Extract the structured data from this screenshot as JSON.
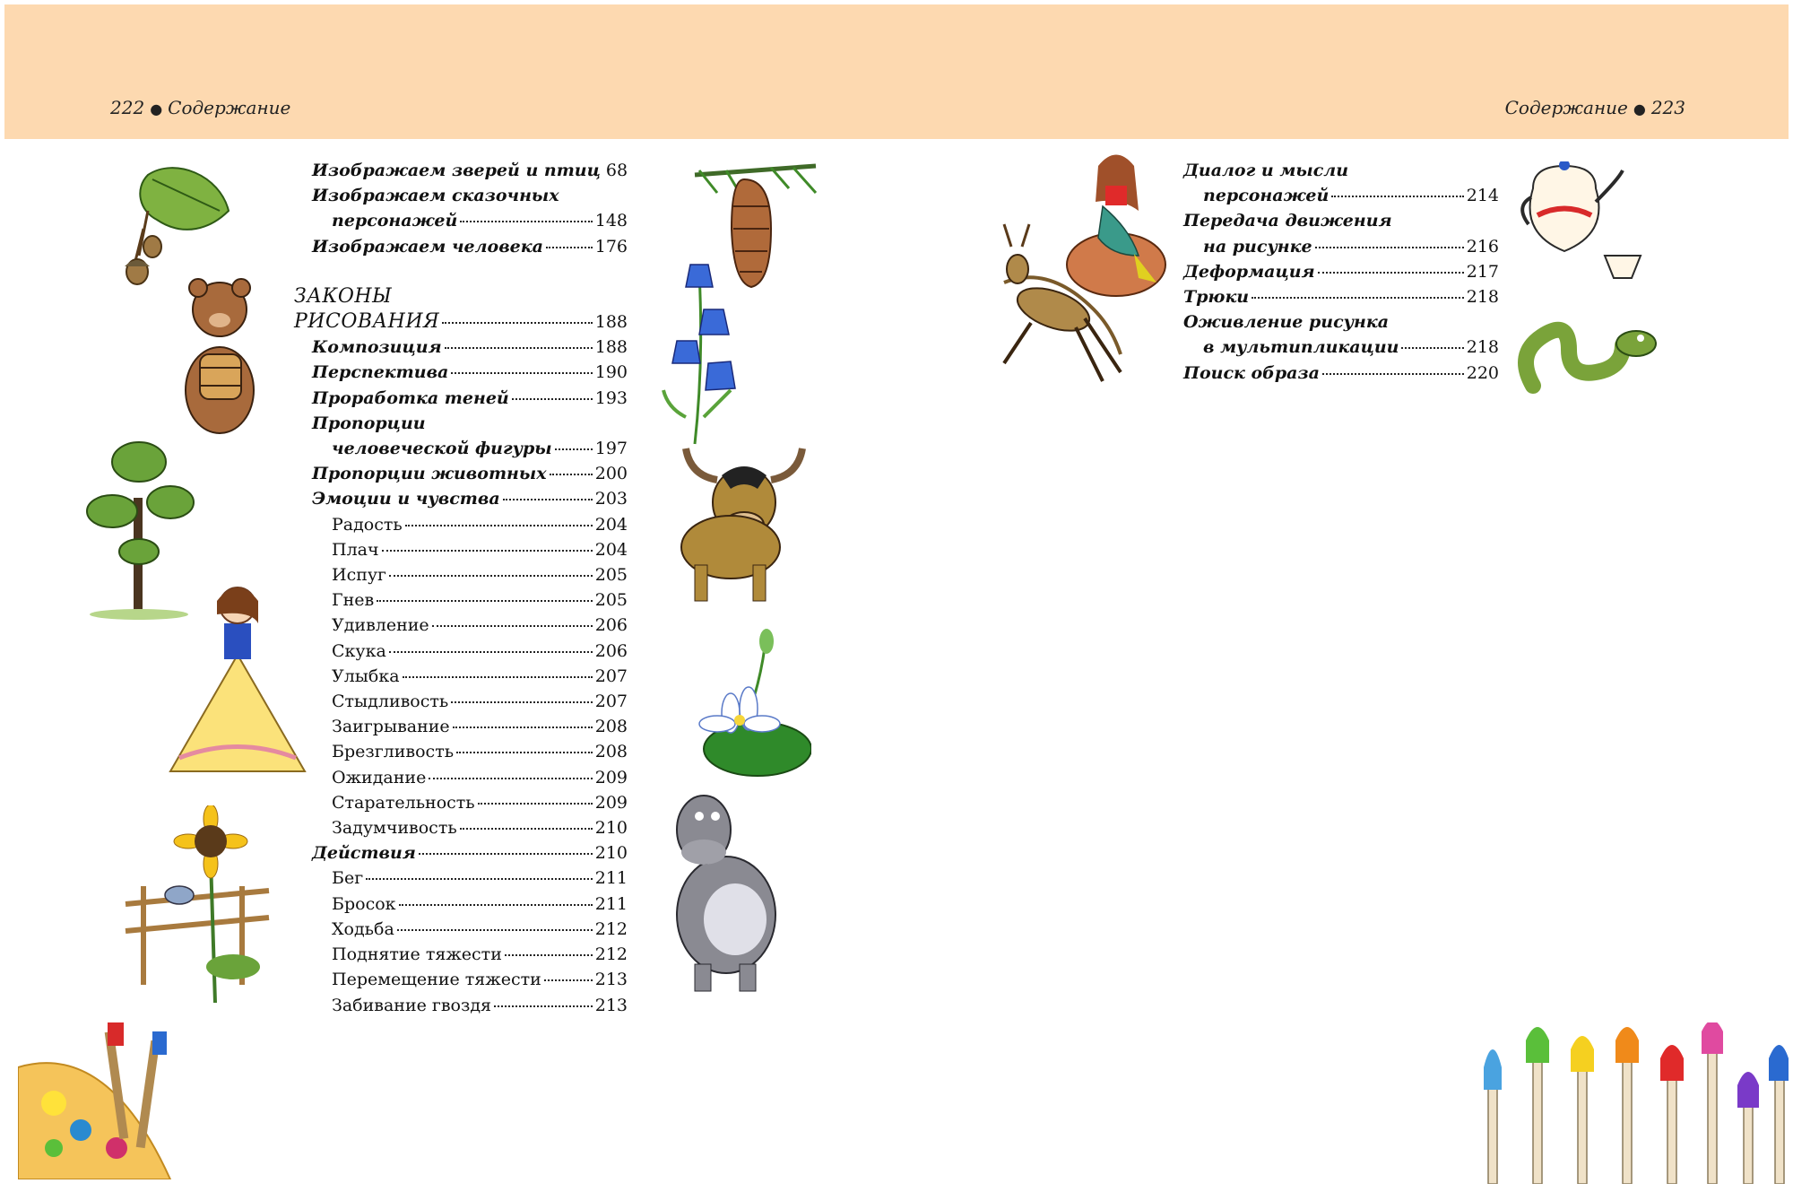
{
  "header": {
    "left_page_number": "222",
    "left_title": "Содержание",
    "right_title": "Содержание",
    "right_page_number": "223",
    "band_color": "#fdd9b0"
  },
  "toc_left": {
    "entries": [
      {
        "title": "Изображаем зверей и птиц",
        "page": "68"
      },
      {
        "title": "Изображаем сказочных"
      },
      {
        "title": "персонажей",
        "page": "148"
      },
      {
        "title": "Изображаем человека",
        "page": "176"
      },
      {
        "title": "ЗАКОНЫ"
      },
      {
        "title": "РИСОВАНИЯ",
        "page": "188"
      },
      {
        "title": "Композиция",
        "page": "188"
      },
      {
        "title": "Перспектива",
        "page": "190"
      },
      {
        "title": "Проработка теней",
        "page": "193"
      },
      {
        "title": "Пропорции"
      },
      {
        "title": "человеческой фигуры",
        "page": "197"
      },
      {
        "title": "Пропорции животных",
        "page": "200"
      },
      {
        "title": "Эмоции и чувства",
        "page": "203"
      },
      {
        "title": "Радость",
        "page": "204"
      },
      {
        "title": "Плач",
        "page": "204"
      },
      {
        "title": "Испуг",
        "page": "205"
      },
      {
        "title": "Гнев",
        "page": "205"
      },
      {
        "title": "Удивление",
        "page": "206"
      },
      {
        "title": "Скука",
        "page": "206"
      },
      {
        "title": "Улыбка",
        "page": "207"
      },
      {
        "title": "Стыдливость",
        "page": "207"
      },
      {
        "title": "Заигрывание",
        "page": "208"
      },
      {
        "title": "Брезгливость",
        "page": "208"
      },
      {
        "title": "Ожидание",
        "page": "209"
      },
      {
        "title": "Старательность",
        "page": "209"
      },
      {
        "title": "Задумчивость",
        "page": "210"
      },
      {
        "title": "Действия",
        "page": "210"
      },
      {
        "title": "Бег",
        "page": "211"
      },
      {
        "title": "Бросок",
        "page": "211"
      },
      {
        "title": "Ходьба",
        "page": "212"
      },
      {
        "title": "Поднятие тяжести",
        "page": "212"
      },
      {
        "title": "Перемещение тяжести",
        "page": "213"
      },
      {
        "title": "Забивание гвоздя",
        "page": "213"
      }
    ]
  },
  "toc_right": {
    "entries": [
      {
        "title": "Диалог и мысли"
      },
      {
        "title": "персонажей",
        "page": "214"
      },
      {
        "title": "Передача движения"
      },
      {
        "title": "на рисунке",
        "page": "216"
      },
      {
        "title": "Деформация",
        "page": "217"
      },
      {
        "title": "Трюки",
        "page": "218"
      },
      {
        "title": "Оживление рисунка"
      },
      {
        "title": "в мультипликации",
        "page": "218"
      },
      {
        "title": "Поиск образа",
        "page": "220"
      }
    ]
  },
  "illustrations": [
    "oak-leaf-acorns-icon",
    "pine-cone-icon",
    "bear-with-barrel-icon",
    "bluebell-flower-icon",
    "tree-icon",
    "bull-icon",
    "princess-icon",
    "water-lily-icon",
    "sunflower-fence-bird-icon",
    "hippo-icon",
    "paint-palette-brushes-icon",
    "mermaid-icon",
    "deer-icon",
    "teapot-cup-icon",
    "snake-icon",
    "paint-brushes-icon"
  ]
}
